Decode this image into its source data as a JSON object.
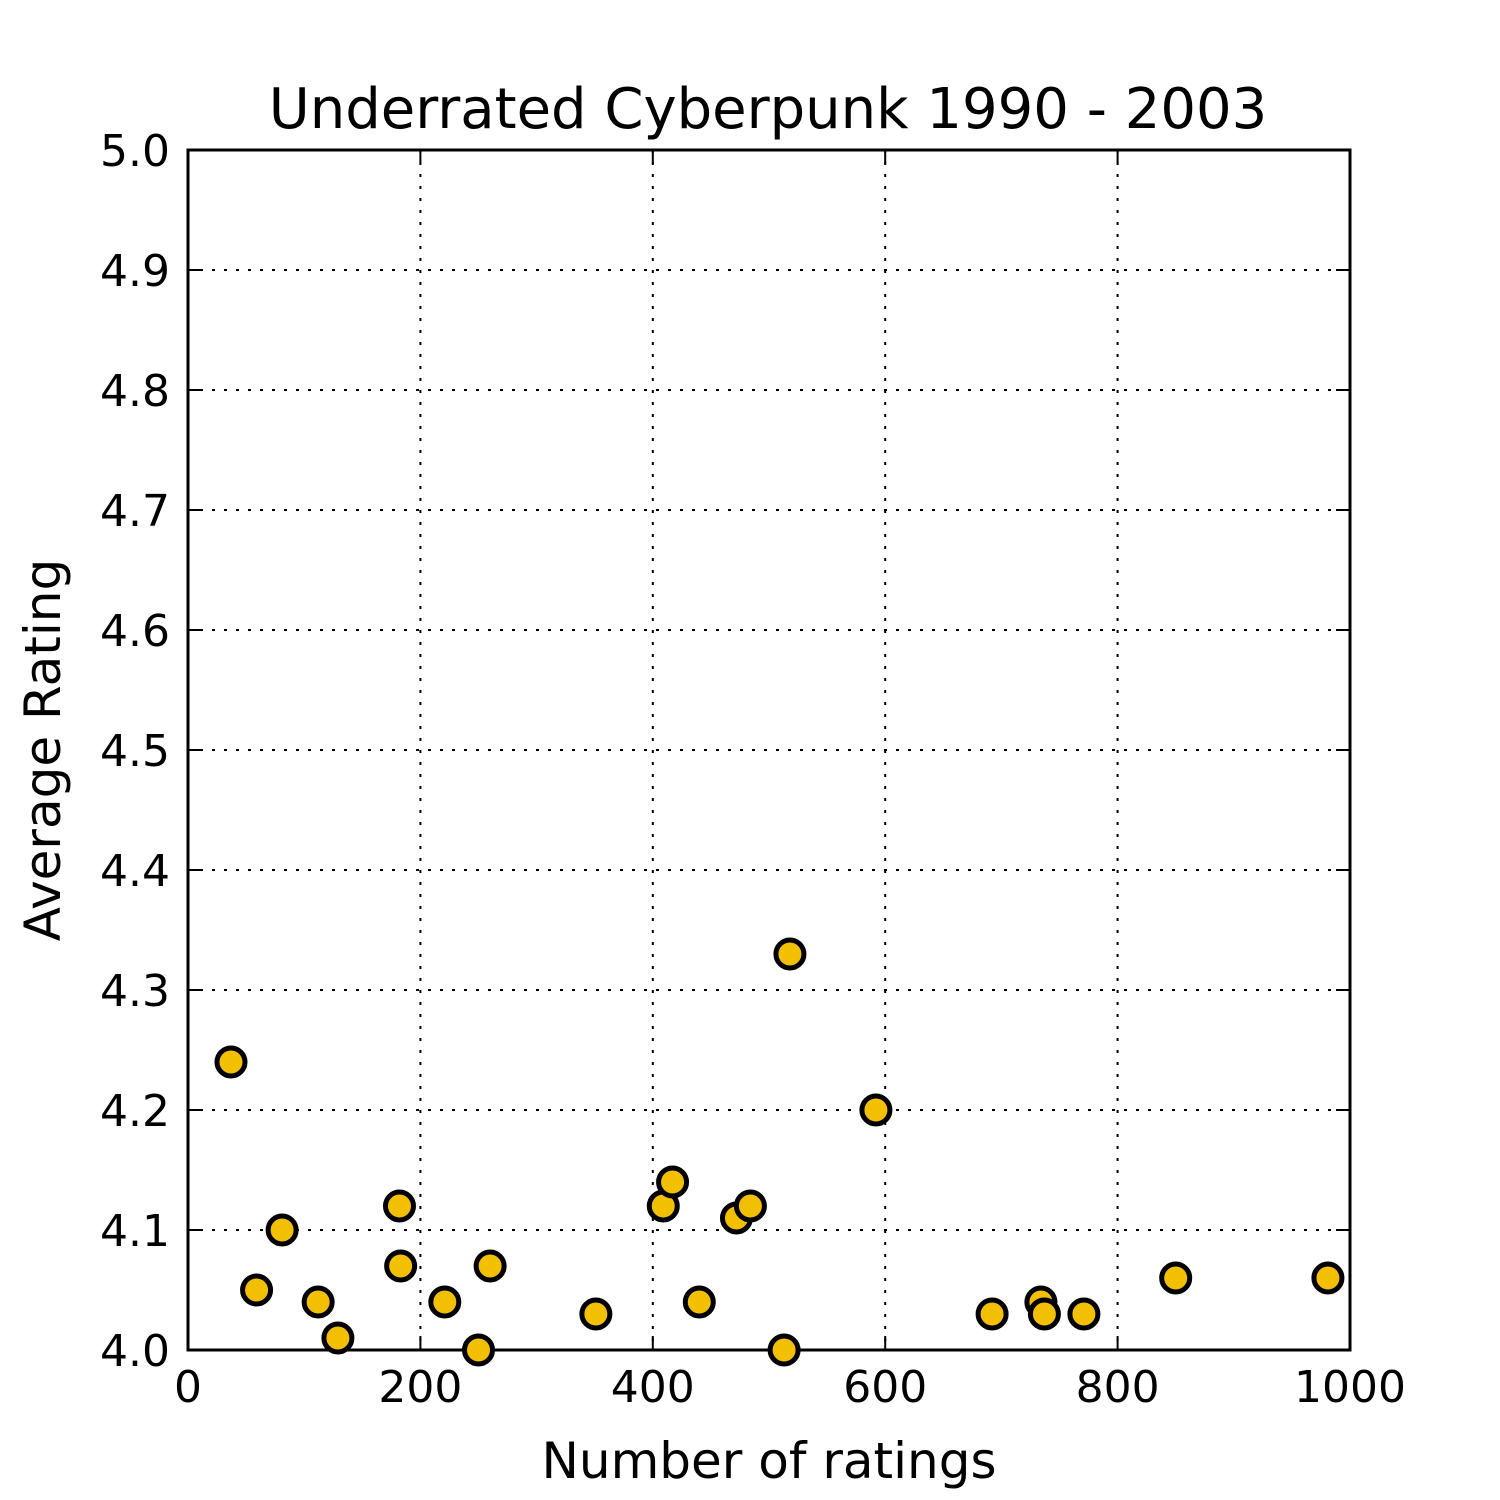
{
  "chart_data": {
    "type": "scatter",
    "title": "Underrated Cyberpunk 1990 - 2003",
    "xlabel": "Number of ratings",
    "ylabel": "Average Rating",
    "xlim": [
      0,
      1000
    ],
    "ylim": [
      4.0,
      5.0
    ],
    "xticks": [
      0,
      200,
      400,
      600,
      800,
      1000
    ],
    "xtick_labels": [
      "0",
      "200",
      "400",
      "600",
      "800",
      "1000"
    ],
    "yticks": [
      4.0,
      4.1,
      4.2,
      4.3,
      4.4,
      4.5,
      4.6,
      4.7,
      4.8,
      4.9,
      5.0
    ],
    "ytick_labels": [
      "4.0",
      "4.1",
      "4.2",
      "4.3",
      "4.4",
      "4.5",
      "4.6",
      "4.7",
      "4.8",
      "4.9",
      "5.0"
    ],
    "grid": true,
    "marker_color": "#f2c000",
    "marker_edge_color": "#000000",
    "points": [
      {
        "x": 37,
        "y": 4.24
      },
      {
        "x": 59,
        "y": 4.05
      },
      {
        "x": 81,
        "y": 4.1
      },
      {
        "x": 112,
        "y": 4.04
      },
      {
        "x": 129,
        "y": 4.01
      },
      {
        "x": 182,
        "y": 4.12
      },
      {
        "x": 183,
        "y": 4.07
      },
      {
        "x": 221,
        "y": 4.04
      },
      {
        "x": 250,
        "y": 4.0
      },
      {
        "x": 260,
        "y": 4.07
      },
      {
        "x": 351,
        "y": 4.03
      },
      {
        "x": 409,
        "y": 4.12
      },
      {
        "x": 417,
        "y": 4.14
      },
      {
        "x": 440,
        "y": 4.04
      },
      {
        "x": 472,
        "y": 4.11
      },
      {
        "x": 484,
        "y": 4.12
      },
      {
        "x": 513,
        "y": 4.0
      },
      {
        "x": 518,
        "y": 4.33
      },
      {
        "x": 592,
        "y": 4.2
      },
      {
        "x": 692,
        "y": 4.03
      },
      {
        "x": 734,
        "y": 4.04
      },
      {
        "x": 737,
        "y": 4.03
      },
      {
        "x": 771,
        "y": 4.03
      },
      {
        "x": 850,
        "y": 4.06
      },
      {
        "x": 981,
        "y": 4.06
      }
    ]
  }
}
